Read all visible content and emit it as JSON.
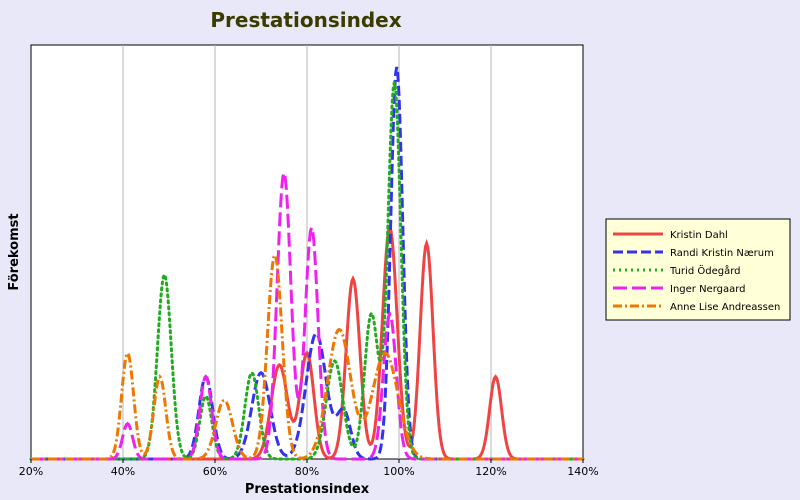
{
  "chart_data": {
    "type": "line",
    "title": "Prestationsindex",
    "xlabel": "Prestationsindex",
    "ylabel": "Förekomst",
    "xlim": [
      20,
      140
    ],
    "ylim": [
      0,
      1
    ],
    "x_ticks": [
      20,
      40,
      60,
      80,
      100,
      120,
      140
    ],
    "x_tick_labels": [
      "20%",
      "40%",
      "60%",
      "80%",
      "100%",
      "120%",
      "140%"
    ],
    "grid": "vertical",
    "legend_position": "right",
    "series": [
      {
        "name": "Kristin Dahl",
        "color": "#ee4444",
        "dash": "solid",
        "peaks": [
          [
            74,
            0.24,
            1.8
          ],
          [
            80,
            0.27,
            1.5
          ],
          [
            90,
            0.46,
            1.5
          ],
          [
            98,
            0.59,
            1.6
          ],
          [
            106,
            0.55,
            1.4
          ],
          [
            121,
            0.21,
            1.3
          ]
        ]
      },
      {
        "name": "Randi Kristin Nærum",
        "color": "#3333ee",
        "dash": "dashed",
        "peaks": [
          [
            58,
            0.21,
            1.5
          ],
          [
            70,
            0.22,
            2.0
          ],
          [
            82,
            0.32,
            2.2
          ],
          [
            88,
            0.12,
            1.5
          ],
          [
            99.5,
            1.0,
            1.3
          ]
        ]
      },
      {
        "name": "Turid Ödegård",
        "color": "#22aa22",
        "dash": "dotted",
        "peaks": [
          [
            49,
            0.47,
            1.5
          ],
          [
            58,
            0.16,
            1.3
          ],
          [
            68,
            0.22,
            1.5
          ],
          [
            86,
            0.25,
            1.8
          ],
          [
            94,
            0.37,
            1.5
          ],
          [
            99,
            0.96,
            1.4
          ]
        ]
      },
      {
        "name": "Inger Nergaard",
        "color": "#ee22ee",
        "dash": "longdash",
        "peaks": [
          [
            41,
            0.09,
            1.1
          ],
          [
            58,
            0.21,
            1.3
          ],
          [
            75,
            0.73,
            1.5
          ],
          [
            81,
            0.59,
            1.4
          ],
          [
            98,
            0.37,
            1.4
          ]
        ]
      },
      {
        "name": "Anne Lise Andreassen",
        "color": "#ee7700",
        "dash": "dashdot",
        "peaks": [
          [
            41,
            0.27,
            1.3
          ],
          [
            48,
            0.21,
            1.3
          ],
          [
            62,
            0.15,
            1.8
          ],
          [
            73,
            0.52,
            1.6
          ],
          [
            87,
            0.33,
            2.5
          ],
          [
            97,
            0.27,
            2.8
          ]
        ]
      }
    ]
  }
}
